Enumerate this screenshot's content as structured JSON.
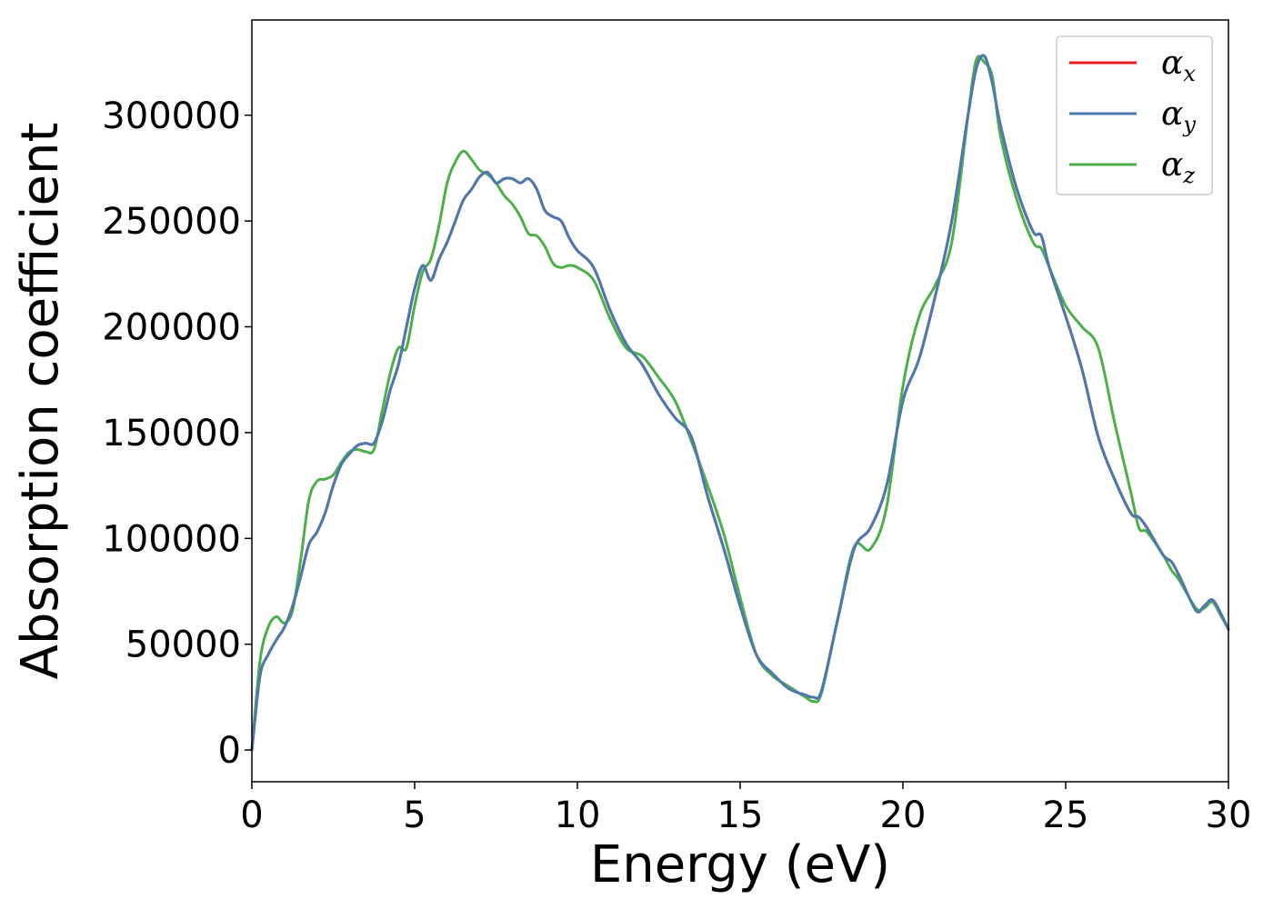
{
  "chart_data": {
    "type": "line",
    "title": "",
    "xlabel": "Energy (eV)",
    "ylabel": "Absorption coefficient",
    "xlim": [
      0,
      30
    ],
    "ylim": [
      -15000,
      345000
    ],
    "xticks": [
      0,
      5,
      10,
      15,
      20,
      25,
      30
    ],
    "yticks": [
      0,
      50000,
      100000,
      150000,
      200000,
      250000,
      300000
    ],
    "grid": false,
    "legend_position": "top-right",
    "series": [
      {
        "name": "α",
        "subscript": "x",
        "color": "#e41a1c",
        "x": [
          0,
          0.25,
          0.5,
          0.75,
          1.0,
          1.25,
          1.5,
          1.75,
          2.0,
          2.25,
          2.5,
          2.75,
          3.0,
          3.25,
          3.5,
          3.75,
          4.0,
          4.25,
          4.5,
          4.75,
          5.0,
          5.25,
          5.5,
          5.75,
          6.0,
          6.25,
          6.5,
          6.75,
          7.0,
          7.25,
          7.5,
          7.75,
          8.0,
          8.25,
          8.5,
          8.75,
          9.0,
          9.25,
          9.5,
          9.75,
          10.0,
          10.5,
          11.0,
          11.5,
          12.0,
          12.5,
          13.0,
          13.5,
          14.0,
          14.5,
          15.0,
          15.5,
          16.0,
          16.5,
          17.0,
          17.25,
          17.5,
          18.0,
          18.5,
          19.0,
          19.5,
          20.0,
          20.5,
          21.0,
          21.5,
          22.0,
          22.25,
          22.5,
          22.75,
          23.0,
          23.5,
          24.0,
          24.25,
          24.5,
          25.0,
          25.5,
          26.0,
          26.5,
          27.0,
          27.25,
          27.5,
          28.0,
          28.25,
          28.5,
          29.0,
          29.25,
          29.5,
          29.75,
          30.0
        ],
        "values": [
          0,
          35000,
          45000,
          52000,
          58000,
          68000,
          82000,
          97000,
          103000,
          112000,
          125000,
          135000,
          140000,
          144000,
          145000,
          145000,
          155000,
          170000,
          182000,
          200000,
          218000,
          229000,
          222000,
          232000,
          240000,
          250000,
          260000,
          265000,
          271000,
          273000,
          268000,
          270000,
          270000,
          268000,
          270000,
          265000,
          255000,
          252000,
          250000,
          242000,
          236000,
          228000,
          208000,
          192000,
          182000,
          168000,
          157000,
          148000,
          120000,
          95000,
          68000,
          45000,
          36000,
          29000,
          26000,
          25000,
          28000,
          62000,
          95000,
          105000,
          125000,
          165000,
          185000,
          215000,
          250000,
          300000,
          322000,
          328000,
          315000,
          295000,
          265000,
          245000,
          243000,
          228000,
          205000,
          180000,
          148000,
          128000,
          112000,
          110000,
          105000,
          92000,
          89000,
          82000,
          66000,
          68000,
          71000,
          65000,
          57000
        ]
      },
      {
        "name": "α",
        "subscript": "y",
        "color": "#4a7ab0",
        "x": [
          0,
          0.25,
          0.5,
          0.75,
          1.0,
          1.25,
          1.5,
          1.75,
          2.0,
          2.25,
          2.5,
          2.75,
          3.0,
          3.25,
          3.5,
          3.75,
          4.0,
          4.25,
          4.5,
          4.75,
          5.0,
          5.25,
          5.5,
          5.75,
          6.0,
          6.25,
          6.5,
          6.75,
          7.0,
          7.25,
          7.5,
          7.75,
          8.0,
          8.25,
          8.5,
          8.75,
          9.0,
          9.25,
          9.5,
          9.75,
          10.0,
          10.5,
          11.0,
          11.5,
          12.0,
          12.5,
          13.0,
          13.5,
          14.0,
          14.5,
          15.0,
          15.5,
          16.0,
          16.5,
          17.0,
          17.25,
          17.5,
          18.0,
          18.5,
          19.0,
          19.5,
          20.0,
          20.5,
          21.0,
          21.5,
          22.0,
          22.25,
          22.5,
          22.75,
          23.0,
          23.5,
          24.0,
          24.25,
          24.5,
          25.0,
          25.5,
          26.0,
          26.5,
          27.0,
          27.25,
          27.5,
          28.0,
          28.25,
          28.5,
          29.0,
          29.25,
          29.5,
          29.75,
          30.0
        ],
        "values": [
          0,
          35000,
          45000,
          52000,
          58000,
          68000,
          82000,
          97000,
          103000,
          112000,
          125000,
          135000,
          140000,
          144000,
          145000,
          145000,
          155000,
          170000,
          182000,
          200000,
          218000,
          229000,
          222000,
          232000,
          240000,
          250000,
          260000,
          265000,
          271000,
          273000,
          268000,
          270000,
          270000,
          268000,
          270000,
          265000,
          255000,
          252000,
          250000,
          242000,
          236000,
          228000,
          208000,
          192000,
          182000,
          168000,
          157000,
          148000,
          120000,
          95000,
          68000,
          45000,
          36000,
          29000,
          26000,
          25000,
          28000,
          62000,
          95000,
          105000,
          125000,
          165000,
          185000,
          215000,
          250000,
          300000,
          322000,
          328000,
          315000,
          295000,
          265000,
          245000,
          243000,
          228000,
          205000,
          180000,
          148000,
          128000,
          112000,
          110000,
          105000,
          92000,
          89000,
          82000,
          66000,
          68000,
          71000,
          65000,
          57000
        ]
      },
      {
        "name": "α",
        "subscript": "z",
        "color": "#4daf4a",
        "x": [
          0,
          0.25,
          0.5,
          0.75,
          1.0,
          1.25,
          1.5,
          1.75,
          2.0,
          2.25,
          2.5,
          2.75,
          3.0,
          3.25,
          3.5,
          3.75,
          4.0,
          4.25,
          4.5,
          4.75,
          5.0,
          5.25,
          5.5,
          5.75,
          6.0,
          6.25,
          6.5,
          6.75,
          7.0,
          7.25,
          7.5,
          7.75,
          8.0,
          8.25,
          8.5,
          8.75,
          9.0,
          9.25,
          9.5,
          9.75,
          10.0,
          10.5,
          11.0,
          11.5,
          12.0,
          12.5,
          13.0,
          13.5,
          14.0,
          14.5,
          15.0,
          15.5,
          16.0,
          16.5,
          17.0,
          17.25,
          17.5,
          18.0,
          18.5,
          19.0,
          19.5,
          20.0,
          20.5,
          21.0,
          21.5,
          22.0,
          22.25,
          22.5,
          22.75,
          23.0,
          23.5,
          24.0,
          24.25,
          24.5,
          25.0,
          25.5,
          26.0,
          26.5,
          27.0,
          27.25,
          27.5,
          28.0,
          28.25,
          28.5,
          29.0,
          29.25,
          29.5,
          29.75,
          30.0
        ],
        "values": [
          0,
          42000,
          58000,
          63000,
          60000,
          66000,
          90000,
          118000,
          127000,
          128000,
          130000,
          136000,
          141000,
          142000,
          141000,
          142000,
          160000,
          178000,
          190000,
          190000,
          210000,
          226000,
          232000,
          248000,
          268000,
          278000,
          283000,
          279000,
          274000,
          272000,
          268000,
          262000,
          258000,
          252000,
          244000,
          243000,
          238000,
          230000,
          228000,
          229000,
          228000,
          222000,
          204000,
          190000,
          186000,
          176000,
          165000,
          146000,
          125000,
          102000,
          72000,
          45000,
          35000,
          30000,
          25000,
          23000,
          27000,
          62000,
          96000,
          95000,
          115000,
          172000,
          205000,
          220000,
          240000,
          300000,
          326000,
          325000,
          318000,
          290000,
          260000,
          240000,
          237000,
          228000,
          210000,
          200000,
          190000,
          155000,
          122000,
          105000,
          103000,
          92000,
          85000,
          80000,
          67000,
          67000,
          70000,
          64000,
          57000
        ]
      }
    ]
  }
}
